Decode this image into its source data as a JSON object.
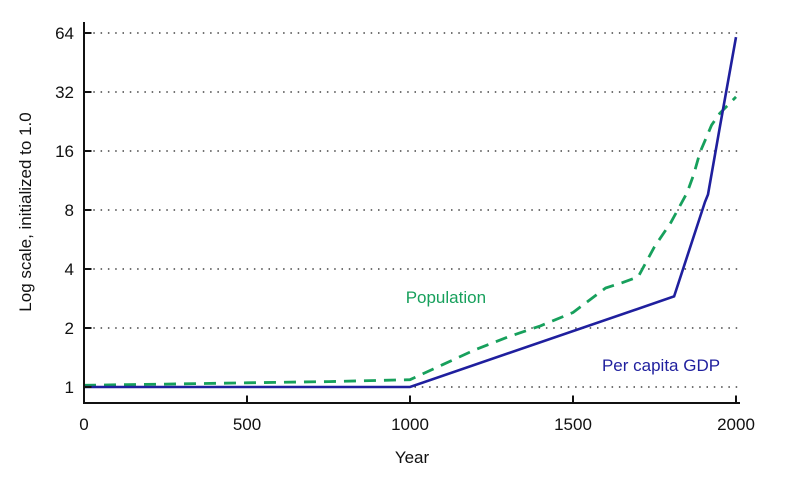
{
  "figure": {
    "background": "#ffffff"
  },
  "chart_data": {
    "type": "line",
    "title": "",
    "xlabel": "Year",
    "ylabel": "Log scale, initialized to 1.0",
    "x_ticks": [
      0,
      500,
      1000,
      1500,
      2000
    ],
    "y_ticks": [
      1,
      2,
      4,
      8,
      16,
      32,
      64
    ],
    "y_scale": "log2",
    "xlim": [
      0,
      2000
    ],
    "ylim": [
      0.83,
      73
    ],
    "grid": "dotted-horizontal",
    "legend_position": "inline-annotations",
    "colors": {
      "population": "#17a05c",
      "per_capita_gdp": "#1f1f9e",
      "axis": "#111111",
      "grid_dots": "#444444"
    },
    "series": [
      {
        "name": "Population",
        "style": "dashed",
        "color_key": "population",
        "points": [
          [
            0,
            1.02
          ],
          [
            250,
            1.035
          ],
          [
            500,
            1.05
          ],
          [
            750,
            1.065
          ],
          [
            1000,
            1.09
          ],
          [
            1100,
            1.3
          ],
          [
            1200,
            1.55
          ],
          [
            1300,
            1.8
          ],
          [
            1400,
            2.05
          ],
          [
            1500,
            2.4
          ],
          [
            1600,
            3.2
          ],
          [
            1650,
            3.4
          ],
          [
            1700,
            3.65
          ],
          [
            1750,
            5.2
          ],
          [
            1800,
            6.9
          ],
          [
            1850,
            9.8
          ],
          [
            1870,
            12.1
          ],
          [
            1890,
            15.8
          ],
          [
            1925,
            21.7
          ],
          [
            1950,
            24.9
          ],
          [
            2000,
            30.2
          ]
        ]
      },
      {
        "name": "Per capita GDP",
        "style": "solid",
        "color_key": "per_capita_gdp",
        "points": [
          [
            0,
            1.0
          ],
          [
            1000,
            1.0
          ],
          [
            1810,
            2.9
          ],
          [
            1905,
            8.8
          ],
          [
            1914,
            9.6
          ],
          [
            1950,
            21.0
          ],
          [
            2000,
            61.0
          ]
        ]
      }
    ],
    "annotations": [
      {
        "text": "Population",
        "x": 1110,
        "y": 2.85,
        "color_key": "population"
      },
      {
        "text": "Per capita GDP",
        "x": 1770,
        "y": 1.28,
        "color_key": "per_capita_gdp"
      }
    ]
  }
}
